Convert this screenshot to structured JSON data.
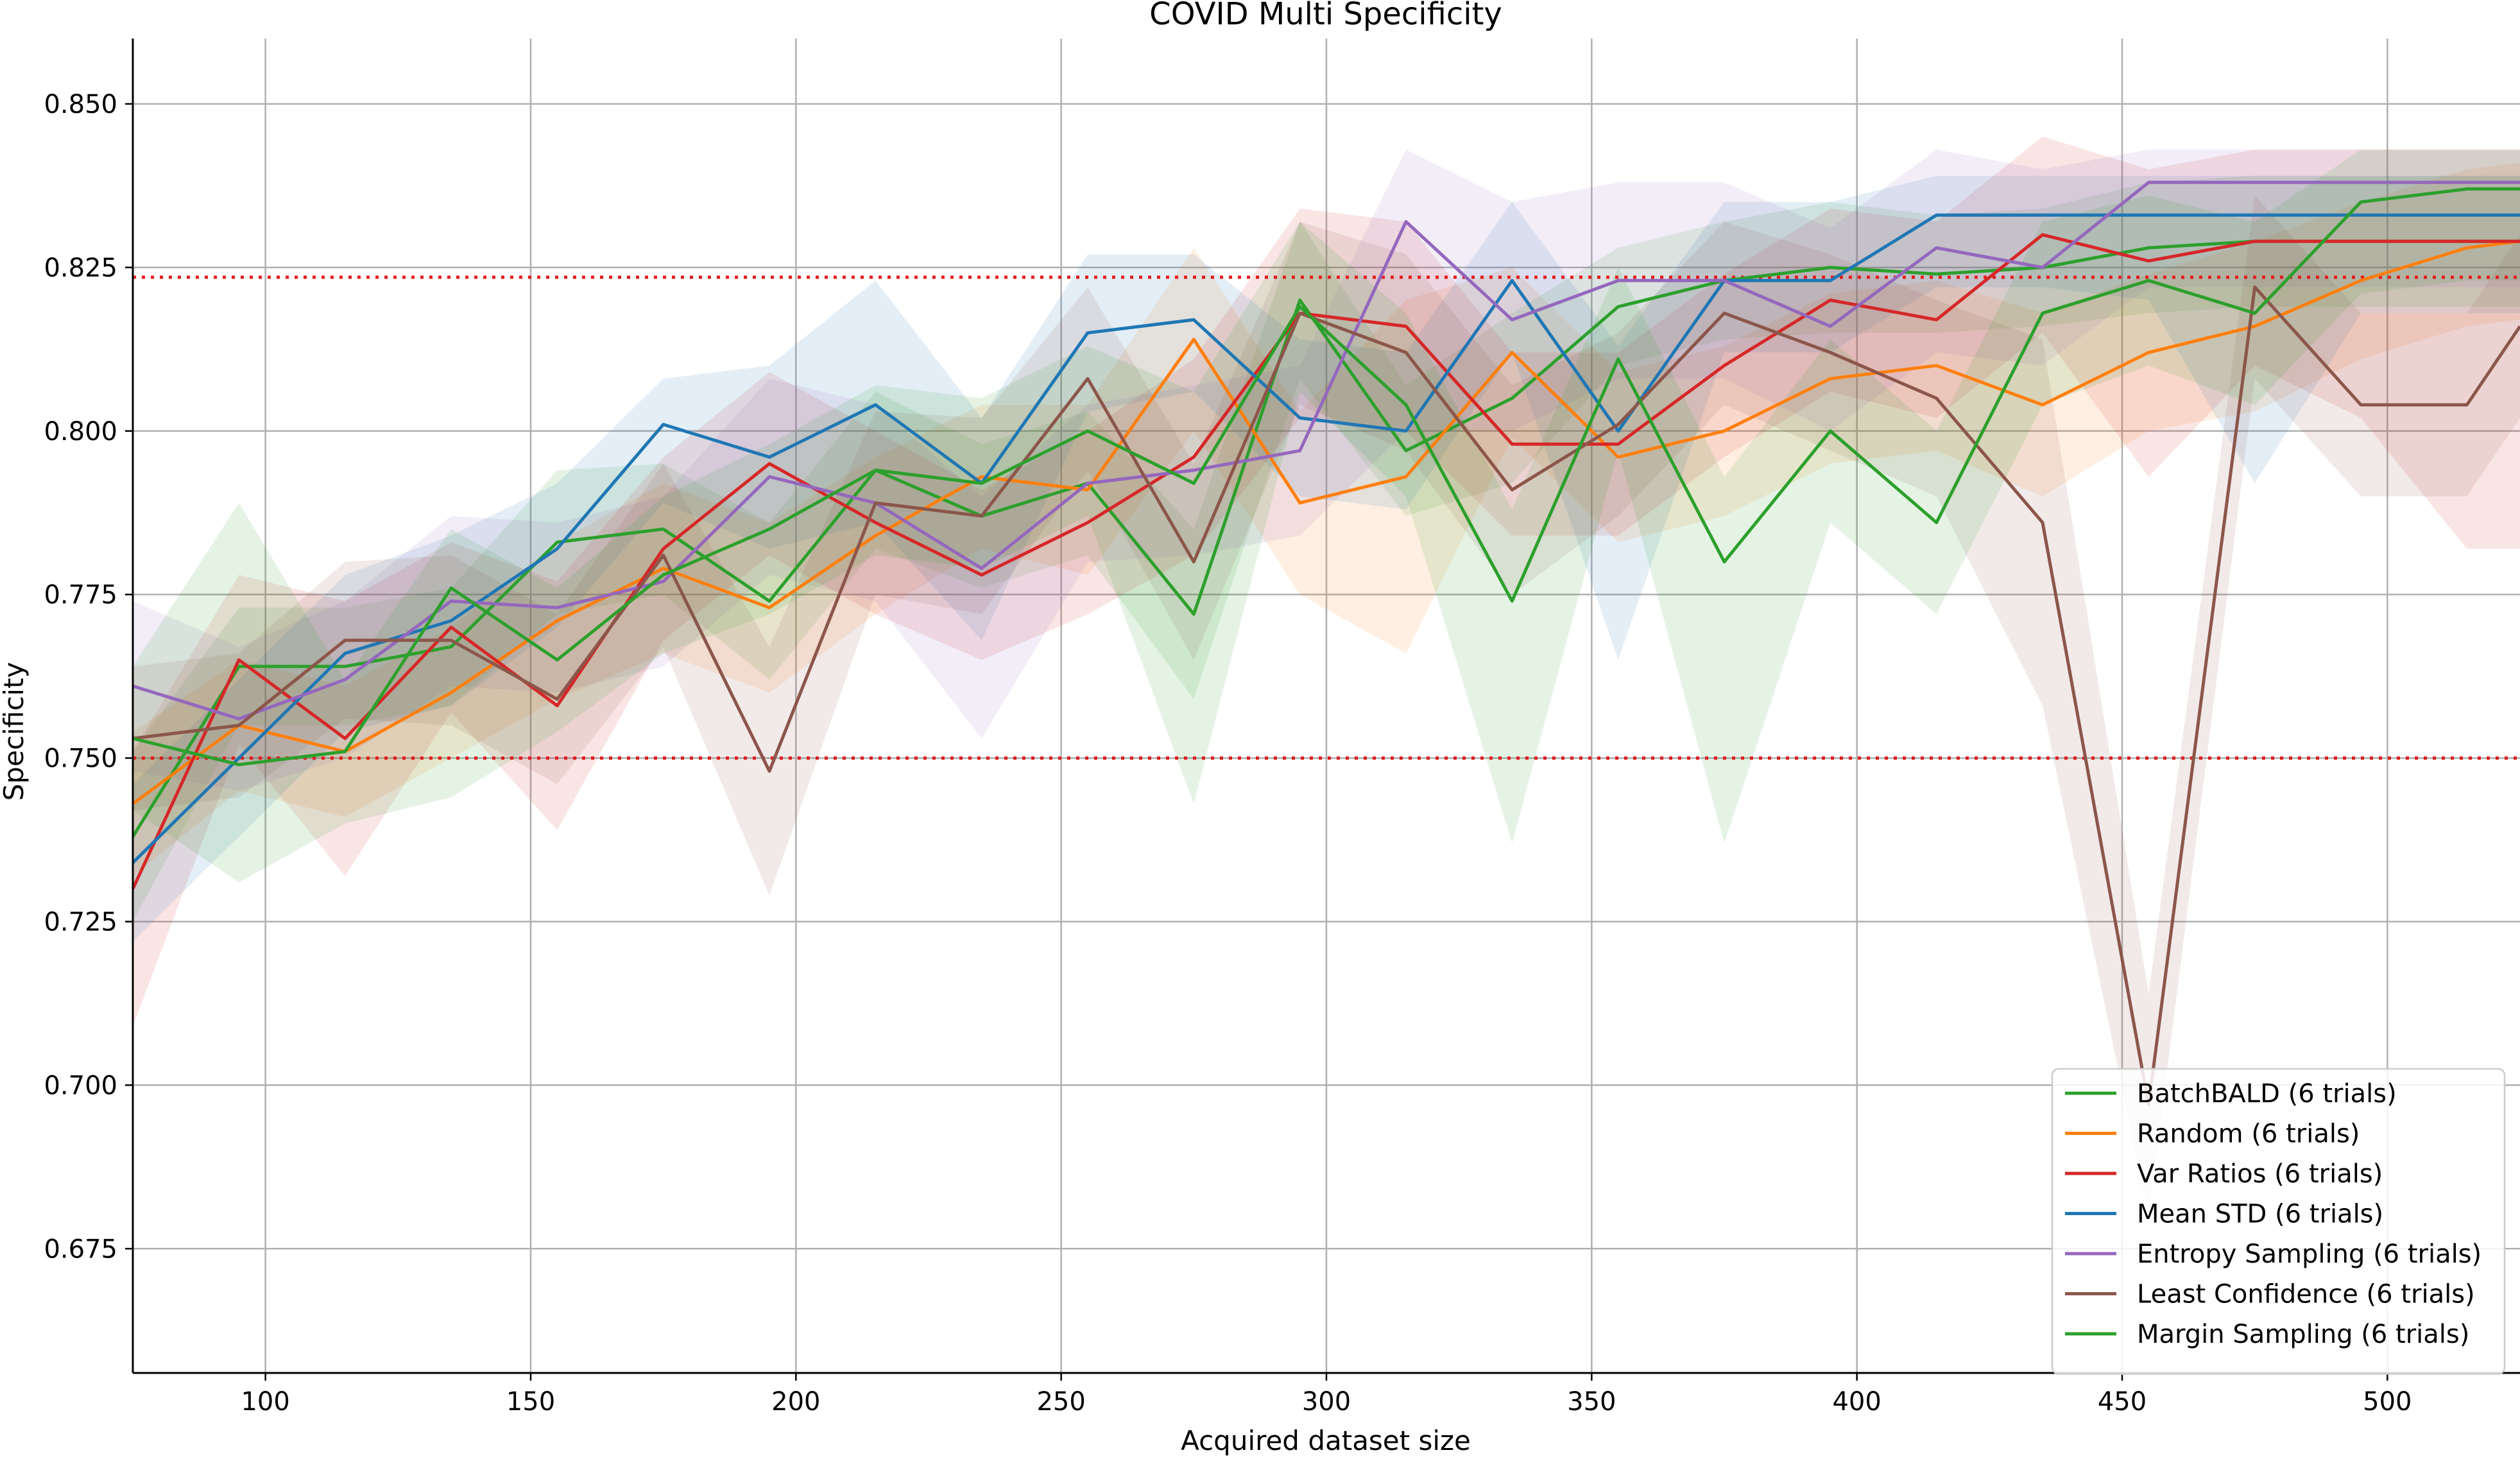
{
  "chart_data": {
    "type": "line",
    "title": "COVID Multi Specificity",
    "xlabel": "Acquired dataset size",
    "ylabel": "Specificity",
    "xlim": [
      75,
      525
    ],
    "ylim": [
      0.656,
      0.86
    ],
    "xticks": [
      100,
      150,
      200,
      250,
      300,
      350,
      400,
      450,
      500
    ],
    "yticks": [
      0.675,
      0.7,
      0.725,
      0.75,
      0.775,
      0.8,
      0.825,
      0.85
    ],
    "xtick_labels": [
      "100",
      "150",
      "200",
      "250",
      "300",
      "350",
      "400",
      "450",
      "500"
    ],
    "ytick_labels": [
      "0.675",
      "0.700",
      "0.725",
      "0.750",
      "0.775",
      "0.800",
      "0.825",
      "0.850"
    ],
    "grid": true,
    "legend_position": "lower-right",
    "reference_lines": [
      {
        "y": 0.8235,
        "color": "#e31a1c",
        "style": "dotted"
      },
      {
        "y": 0.75,
        "color": "#e31a1c",
        "style": "dotted"
      }
    ],
    "x": [
      75,
      95,
      115,
      135,
      155,
      175,
      195,
      215,
      235,
      255,
      275,
      295,
      315,
      335,
      355,
      375,
      395,
      415,
      435,
      455,
      475,
      495,
      515,
      525
    ],
    "series": [
      {
        "name": "BatchBALD (6 trials)",
        "color": "#2ca02c",
        "values": [
          0.738,
          0.764,
          0.764,
          0.767,
          0.783,
          0.785,
          0.774,
          0.794,
          0.787,
          0.792,
          0.772,
          0.82,
          0.797,
          0.805,
          0.819,
          0.823,
          0.825,
          0.824,
          0.825,
          0.828,
          0.829,
          0.829,
          0.829,
          0.829
        ],
        "lower": [
          0.725,
          0.755,
          0.755,
          0.758,
          0.772,
          0.775,
          0.762,
          0.782,
          0.776,
          0.781,
          0.759,
          0.808,
          0.787,
          0.792,
          0.81,
          0.814,
          0.815,
          0.815,
          0.816,
          0.818,
          0.819,
          0.819,
          0.819,
          0.819
        ],
        "upper": [
          0.751,
          0.773,
          0.773,
          0.776,
          0.794,
          0.795,
          0.786,
          0.806,
          0.798,
          0.803,
          0.785,
          0.832,
          0.807,
          0.818,
          0.828,
          0.832,
          0.835,
          0.833,
          0.834,
          0.838,
          0.839,
          0.839,
          0.839,
          0.839
        ]
      },
      {
        "name": "Random (6 trials)",
        "color": "#ff7f0e",
        "values": [
          0.743,
          0.755,
          0.751,
          0.76,
          0.771,
          0.779,
          0.773,
          0.784,
          0.793,
          0.791,
          0.814,
          0.789,
          0.793,
          0.812,
          0.796,
          0.8,
          0.808,
          0.81,
          0.804,
          0.812,
          0.816,
          0.823,
          0.828,
          0.829
        ],
        "lower": [
          0.732,
          0.745,
          0.741,
          0.75,
          0.759,
          0.766,
          0.76,
          0.772,
          0.782,
          0.778,
          0.8,
          0.775,
          0.766,
          0.799,
          0.783,
          0.787,
          0.795,
          0.797,
          0.79,
          0.8,
          0.803,
          0.811,
          0.816,
          0.817
        ],
        "upper": [
          0.754,
          0.765,
          0.761,
          0.77,
          0.783,
          0.792,
          0.786,
          0.796,
          0.804,
          0.804,
          0.828,
          0.803,
          0.82,
          0.825,
          0.809,
          0.813,
          0.821,
          0.823,
          0.818,
          0.824,
          0.829,
          0.835,
          0.84,
          0.841
        ]
      },
      {
        "name": "Var Ratios (6 trials)",
        "color": "#d62728",
        "values": [
          0.73,
          0.765,
          0.753,
          0.77,
          0.758,
          0.782,
          0.795,
          0.786,
          0.778,
          0.786,
          0.796,
          0.818,
          0.816,
          0.798,
          0.798,
          0.81,
          0.82,
          0.817,
          0.83,
          0.826,
          0.829,
          0.829,
          0.829,
          0.829
        ],
        "lower": [
          0.709,
          0.752,
          0.732,
          0.757,
          0.739,
          0.768,
          0.781,
          0.772,
          0.765,
          0.772,
          0.781,
          0.802,
          0.8,
          0.784,
          0.784,
          0.796,
          0.806,
          0.802,
          0.815,
          0.793,
          0.81,
          0.802,
          0.782,
          0.782
        ],
        "upper": [
          0.751,
          0.778,
          0.774,
          0.783,
          0.777,
          0.796,
          0.809,
          0.8,
          0.791,
          0.8,
          0.811,
          0.834,
          0.832,
          0.812,
          0.812,
          0.824,
          0.834,
          0.832,
          0.845,
          0.84,
          0.843,
          0.843,
          0.843,
          0.843
        ]
      },
      {
        "name": "Mean STD (6 trials)",
        "color": "#1f77b4",
        "values": [
          0.734,
          0.75,
          0.766,
          0.771,
          0.782,
          0.801,
          0.796,
          0.804,
          0.792,
          0.815,
          0.817,
          0.802,
          0.8,
          0.823,
          0.8,
          0.823,
          0.823,
          0.833,
          0.833,
          0.833,
          0.833,
          0.833,
          0.833,
          0.833
        ],
        "lower": [
          0.722,
          0.738,
          0.754,
          0.758,
          0.77,
          0.789,
          0.782,
          0.786,
          0.768,
          0.803,
          0.806,
          0.79,
          0.788,
          0.812,
          0.765,
          0.812,
          0.812,
          0.822,
          0.822,
          0.82,
          0.792,
          0.818,
          0.818,
          0.818
        ],
        "upper": [
          0.746,
          0.762,
          0.778,
          0.784,
          0.792,
          0.808,
          0.81,
          0.823,
          0.802,
          0.827,
          0.827,
          0.814,
          0.812,
          0.835,
          0.813,
          0.835,
          0.835,
          0.839,
          0.839,
          0.839,
          0.839,
          0.839,
          0.839,
          0.839
        ]
      },
      {
        "name": "Entropy Sampling (6 trials)",
        "color": "#9467bd",
        "values": [
          0.761,
          0.756,
          0.762,
          0.774,
          0.773,
          0.777,
          0.793,
          0.789,
          0.779,
          0.792,
          0.794,
          0.797,
          0.832,
          0.817,
          0.823,
          0.823,
          0.816,
          0.828,
          0.825,
          0.838,
          0.838,
          0.838,
          0.838,
          0.838
        ],
        "lower": [
          0.748,
          0.745,
          0.75,
          0.761,
          0.76,
          0.764,
          0.778,
          0.774,
          0.753,
          0.78,
          0.781,
          0.784,
          0.8,
          0.8,
          0.808,
          0.808,
          0.8,
          0.812,
          0.81,
          0.822,
          0.822,
          0.822,
          0.822,
          0.822
        ],
        "upper": [
          0.774,
          0.767,
          0.774,
          0.787,
          0.786,
          0.79,
          0.808,
          0.804,
          0.79,
          0.804,
          0.807,
          0.81,
          0.843,
          0.835,
          0.838,
          0.838,
          0.831,
          0.843,
          0.84,
          0.843,
          0.843,
          0.843,
          0.843,
          0.843
        ]
      },
      {
        "name": "Least Confidence (6 trials)",
        "color": "#8c564b",
        "values": [
          0.753,
          0.755,
          0.768,
          0.768,
          0.759,
          0.781,
          0.748,
          0.789,
          0.787,
          0.808,
          0.78,
          0.818,
          0.812,
          0.791,
          0.801,
          0.818,
          0.812,
          0.805,
          0.786,
          0.697,
          0.822,
          0.804,
          0.804,
          0.816
        ],
        "lower": [
          0.742,
          0.744,
          0.756,
          0.755,
          0.746,
          0.767,
          0.729,
          0.775,
          0.772,
          0.794,
          0.765,
          0.804,
          0.797,
          0.775,
          0.787,
          0.804,
          0.797,
          0.79,
          0.758,
          0.68,
          0.808,
          0.79,
          0.79,
          0.802
        ],
        "upper": [
          0.764,
          0.766,
          0.78,
          0.781,
          0.772,
          0.795,
          0.767,
          0.803,
          0.802,
          0.822,
          0.795,
          0.832,
          0.827,
          0.807,
          0.815,
          0.832,
          0.827,
          0.82,
          0.814,
          0.714,
          0.836,
          0.818,
          0.818,
          0.83
        ]
      },
      {
        "name": "Margin Sampling (6 trials)",
        "color": "#2ca02c",
        "values": [
          0.753,
          0.749,
          0.751,
          0.776,
          0.765,
          0.778,
          0.785,
          0.794,
          0.792,
          0.8,
          0.792,
          0.819,
          0.804,
          0.774,
          0.811,
          0.78,
          0.8,
          0.786,
          0.818,
          0.823,
          0.818,
          0.835,
          0.837,
          0.837
        ],
        "lower": [
          0.742,
          0.731,
          0.74,
          0.744,
          0.754,
          0.766,
          0.772,
          0.781,
          0.779,
          0.787,
          0.743,
          0.806,
          0.79,
          0.737,
          0.797,
          0.737,
          0.786,
          0.772,
          0.804,
          0.81,
          0.804,
          0.821,
          0.823,
          0.823
        ],
        "upper": [
          0.764,
          0.789,
          0.762,
          0.785,
          0.776,
          0.79,
          0.798,
          0.807,
          0.805,
          0.813,
          0.806,
          0.832,
          0.818,
          0.788,
          0.825,
          0.793,
          0.814,
          0.8,
          0.832,
          0.836,
          0.832,
          0.843,
          0.843,
          0.843
        ]
      }
    ]
  }
}
